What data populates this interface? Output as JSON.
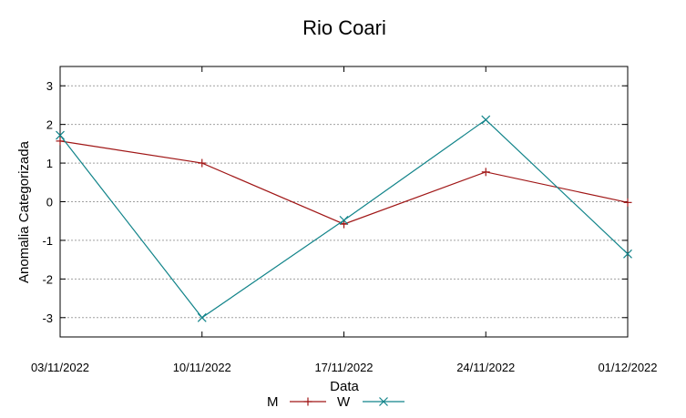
{
  "chart_data": {
    "type": "line",
    "title": "Rio Coari",
    "xlabel": "Data",
    "ylabel": "Anomalia Categorizada",
    "categories": [
      "03/11/2022",
      "10/11/2022",
      "17/11/2022",
      "24/11/2022",
      "01/12/2022"
    ],
    "yticks": [
      3,
      2,
      1,
      0,
      -1,
      -2,
      -3
    ],
    "ylim": [
      -3.5,
      3.5
    ],
    "grid": true,
    "legend_position": "bottom-center",
    "series": [
      {
        "name": "M",
        "values": [
          1.57,
          1.0,
          -0.58,
          0.77,
          -0.02
        ],
        "color": "#a01616",
        "marker": "plus"
      },
      {
        "name": "W",
        "values": [
          1.72,
          -3.0,
          -0.48,
          2.12,
          -1.35
        ],
        "color": "#12848a",
        "marker": "cross"
      }
    ]
  }
}
